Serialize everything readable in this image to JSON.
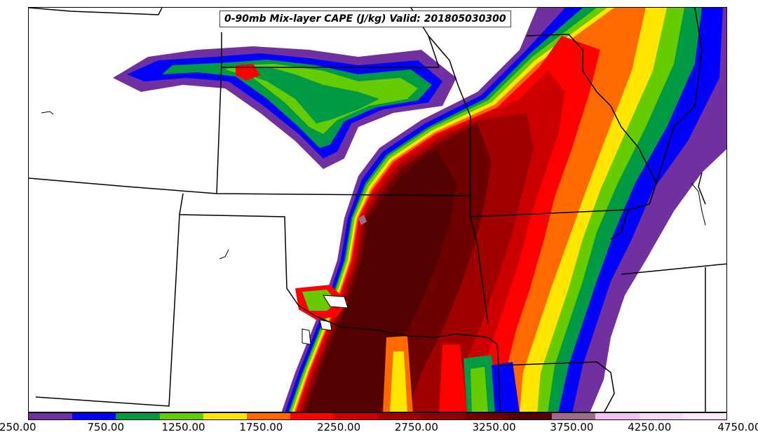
{
  "title": "0-90mb Mix-layer CAPE (J/kg) Valid: 201805030300",
  "colorbar": {
    "ticks": [
      "250.00",
      "750.00",
      "1250.00",
      "1750.00",
      "2250.00",
      "2750.00",
      "3250.00",
      "3750.00",
      "4250.00",
      "4750.00"
    ],
    "colors": [
      "#7030a0",
      "#0000ff",
      "#009a44",
      "#66cc00",
      "#ffe600",
      "#ff6a00",
      "#ff0000",
      "#cc0000",
      "#a00000",
      "#8b0000",
      "#6e0000",
      "#520000",
      "#9c6a8a",
      "#f4c2f0",
      "#f9d9f6",
      "#fde9fb"
    ]
  }
}
